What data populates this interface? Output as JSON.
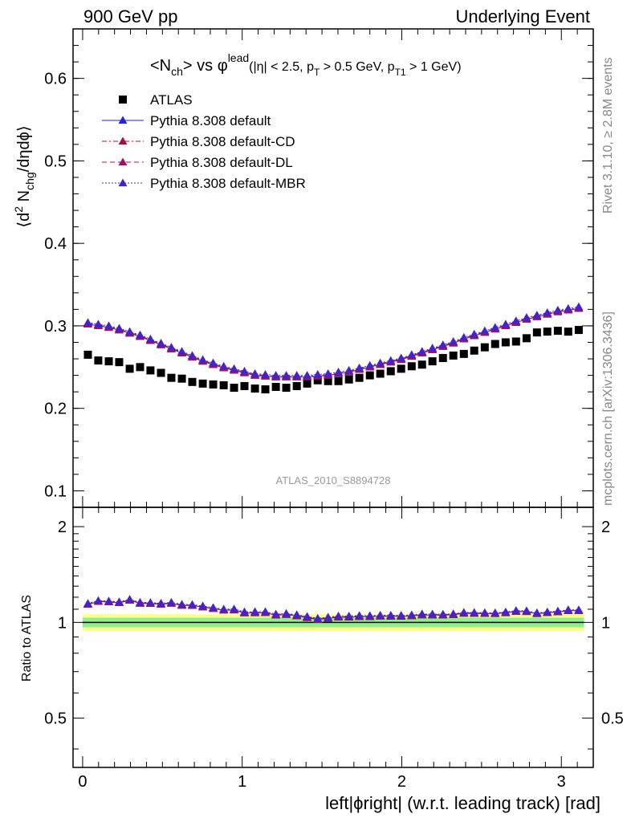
{
  "header": {
    "left": "900 GeV pp",
    "right": "Underlying Event"
  },
  "side_labels": {
    "top": "Rivet 3.1.10, ≥ 2.8M events",
    "bottom": "mcplots.cern.ch [arXiv:1306.3436]"
  },
  "watermark": "ATLAS_2010_S8894728",
  "chart_data": {
    "type": "scatter",
    "title": {
      "main_prefix": "<N",
      "main_sub1": "ch",
      "main_mid": "> vs ",
      "main_phi": "φ",
      "main_sup": "lead",
      "cuts_a": "(|η| < 2.5, p",
      "cuts_sub1": "T",
      "cuts_b": " > 0.5 GeV, p",
      "cuts_sub2": "T1",
      "cuts_c": " > 1 GeV)"
    },
    "xlabel": "left|ϕright| (w.r.t. leading track) [rad]",
    "ylabel": {
      "a": "⟨d",
      "sup": "2",
      "b": " N",
      "sub": "chg",
      "c": "/dηdϕ⟩"
    },
    "ratio_ylabel": "Ratio to ATLAS",
    "xlim": [
      -0.06,
      3.2
    ],
    "ylim": [
      0.08,
      0.66
    ],
    "ratio_ylim": [
      0.35,
      2.3
    ],
    "x_ticks": [
      "0",
      "1",
      "2",
      "3"
    ],
    "y_ticks": [
      "0.1",
      "0.2",
      "0.3",
      "0.4",
      "0.5",
      "0.6"
    ],
    "ratio_ticks": [
      "0.5",
      "1",
      "2"
    ],
    "legend": [
      {
        "label": "ATLAS",
        "color": "#000000",
        "marker": "square"
      },
      {
        "label": "Pythia 8.308 default",
        "color": "#2222dd",
        "marker": "triangle",
        "line": "solid"
      },
      {
        "label": "Pythia 8.308 default-CD",
        "color": "#a01040",
        "marker": "triangle",
        "line": "dashdot"
      },
      {
        "label": "Pythia 8.308 default-DL",
        "color": "#a01060",
        "marker": "triangle",
        "line": "dashed"
      },
      {
        "label": "Pythia 8.308 default-MBR",
        "color": "#4422cc",
        "marker": "triangle",
        "line": "dotted"
      }
    ],
    "x": [
      0.033,
      0.098,
      0.164,
      0.229,
      0.295,
      0.36,
      0.425,
      0.491,
      0.556,
      0.622,
      0.687,
      0.753,
      0.818,
      0.884,
      0.949,
      1.014,
      1.08,
      1.145,
      1.211,
      1.276,
      1.342,
      1.407,
      1.473,
      1.538,
      1.603,
      1.669,
      1.734,
      1.8,
      1.865,
      1.931,
      1.996,
      2.062,
      2.127,
      2.192,
      2.258,
      2.323,
      2.389,
      2.454,
      2.52,
      2.585,
      2.651,
      2.716,
      2.782,
      2.847,
      2.912,
      2.978,
      3.043,
      3.109
    ],
    "series": [
      {
        "name": "ATLAS",
        "values": [
          0.265,
          0.258,
          0.257,
          0.256,
          0.248,
          0.25,
          0.246,
          0.243,
          0.237,
          0.236,
          0.232,
          0.23,
          0.229,
          0.228,
          0.225,
          0.227,
          0.224,
          0.223,
          0.226,
          0.225,
          0.227,
          0.23,
          0.234,
          0.233,
          0.233,
          0.235,
          0.237,
          0.24,
          0.242,
          0.245,
          0.248,
          0.251,
          0.253,
          0.257,
          0.261,
          0.264,
          0.266,
          0.27,
          0.274,
          0.278,
          0.28,
          0.281,
          0.285,
          0.292,
          0.293,
          0.294,
          0.293,
          0.295
        ]
      },
      {
        "name": "Pythia 8.308 default",
        "values": [
          0.302,
          0.3,
          0.298,
          0.295,
          0.291,
          0.287,
          0.282,
          0.277,
          0.272,
          0.267,
          0.262,
          0.257,
          0.253,
          0.249,
          0.246,
          0.243,
          0.24,
          0.239,
          0.238,
          0.238,
          0.238,
          0.238,
          0.239,
          0.24,
          0.242,
          0.244,
          0.247,
          0.25,
          0.253,
          0.256,
          0.259,
          0.263,
          0.267,
          0.271,
          0.275,
          0.279,
          0.284,
          0.288,
          0.292,
          0.296,
          0.3,
          0.304,
          0.308,
          0.311,
          0.314,
          0.317,
          0.319,
          0.321
        ]
      },
      {
        "name": "Pythia 8.308 default-CD",
        "values": [
          0.303,
          0.301,
          0.299,
          0.296,
          0.292,
          0.288,
          0.283,
          0.278,
          0.273,
          0.268,
          0.263,
          0.258,
          0.254,
          0.25,
          0.247,
          0.244,
          0.241,
          0.24,
          0.239,
          0.239,
          0.239,
          0.239,
          0.24,
          0.241,
          0.243,
          0.245,
          0.248,
          0.251,
          0.254,
          0.257,
          0.26,
          0.264,
          0.268,
          0.272,
          0.276,
          0.28,
          0.285,
          0.289,
          0.293,
          0.297,
          0.301,
          0.305,
          0.309,
          0.312,
          0.315,
          0.318,
          0.32,
          0.322
        ]
      },
      {
        "name": "Pythia 8.308 default-DL",
        "values": [
          0.302,
          0.3,
          0.298,
          0.295,
          0.291,
          0.287,
          0.282,
          0.277,
          0.272,
          0.267,
          0.262,
          0.257,
          0.253,
          0.249,
          0.246,
          0.243,
          0.24,
          0.239,
          0.238,
          0.238,
          0.238,
          0.238,
          0.239,
          0.24,
          0.242,
          0.244,
          0.247,
          0.25,
          0.253,
          0.256,
          0.259,
          0.263,
          0.267,
          0.271,
          0.275,
          0.279,
          0.284,
          0.288,
          0.292,
          0.296,
          0.3,
          0.304,
          0.308,
          0.311,
          0.314,
          0.317,
          0.319,
          0.321
        ]
      },
      {
        "name": "Pythia 8.308 default-MBR",
        "values": [
          0.304,
          0.302,
          0.3,
          0.297,
          0.293,
          0.289,
          0.284,
          0.279,
          0.274,
          0.269,
          0.264,
          0.259,
          0.255,
          0.251,
          0.248,
          0.245,
          0.242,
          0.241,
          0.24,
          0.24,
          0.24,
          0.24,
          0.241,
          0.242,
          0.244,
          0.246,
          0.249,
          0.252,
          0.255,
          0.258,
          0.261,
          0.265,
          0.269,
          0.273,
          0.277,
          0.281,
          0.286,
          0.29,
          0.294,
          0.298,
          0.302,
          0.306,
          0.31,
          0.313,
          0.316,
          0.319,
          0.321,
          0.323
        ]
      }
    ],
    "ratio_band": {
      "green_halfwidth": 0.035,
      "yellow_halfwidth": 0.06
    }
  }
}
